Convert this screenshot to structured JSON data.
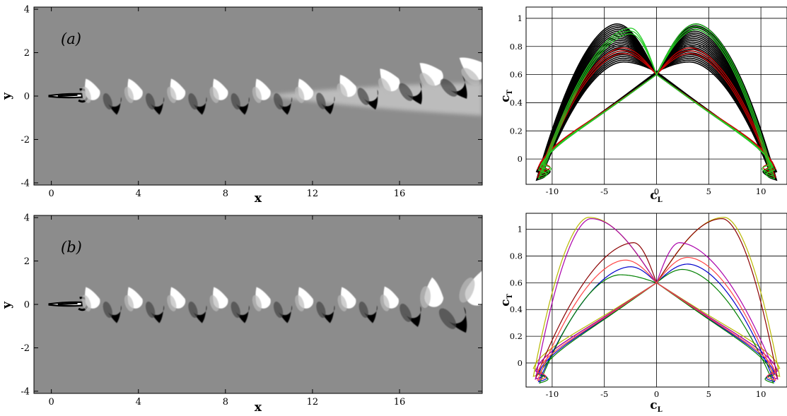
{
  "figure": {
    "panels": [
      {
        "label": "(a)",
        "flow_field": {
          "xlabel": "x",
          "ylabel": "y",
          "x_ticks": [
            "0",
            "4",
            "8",
            "12",
            "16"
          ],
          "y_ticks": [
            "4",
            "2",
            "0",
            "-2",
            "-4"
          ],
          "x_range": [
            -0.8,
            19.8
          ],
          "y_range": [
            -4.1,
            4.1
          ],
          "background_color": "#8c8c8c",
          "wake_transition_x": 12.5
        },
        "phase_plot": {
          "xlabel": "c_L",
          "ylabel": "c_T",
          "x_ticks": [
            "-10",
            "-5",
            "0",
            "5",
            "10"
          ],
          "y_ticks": [
            "0",
            "0.2",
            "0.4",
            "0.6",
            "0.8",
            "1"
          ],
          "x_range": [
            -12.5,
            12.5
          ],
          "y_range": [
            -0.18,
            1.08
          ],
          "series_colors": [
            "#000000",
            "#cc0000",
            "#22cc22"
          ]
        }
      },
      {
        "label": "(b)",
        "flow_field": {
          "xlabel": "x",
          "ylabel": "y",
          "x_ticks": [
            "0",
            "4",
            "8",
            "12",
            "16"
          ],
          "y_ticks": [
            "4",
            "2",
            "0",
            "-2",
            "-4"
          ],
          "x_range": [
            -0.8,
            19.8
          ],
          "y_range": [
            -4.1,
            4.1
          ],
          "background_color": "#8c8c8c",
          "wake_transition_x": 15.5
        },
        "phase_plot": {
          "xlabel": "c_L",
          "ylabel": "c_T",
          "x_ticks": [
            "-10",
            "-5",
            "0",
            "5",
            "10"
          ],
          "y_ticks": [
            "0",
            "0.2",
            "0.4",
            "0.6",
            "0.8",
            "1"
          ],
          "x_range": [
            -12.5,
            12.5
          ],
          "y_range": [
            -0.18,
            1.12
          ],
          "series_colors": [
            "#b8b800",
            "#8b0000",
            "#aa00aa",
            "#0000cc",
            "#008000",
            "#ff4444"
          ]
        }
      }
    ]
  },
  "chart_data": [
    {
      "type": "heatmap",
      "title": "(a)",
      "xlabel": "x",
      "ylabel": "y",
      "xlim": [
        -0.8,
        19.8
      ],
      "ylim": [
        -4.1,
        4.1
      ],
      "x_ticks": [
        0,
        4,
        8,
        12,
        16
      ],
      "y_ticks": [
        -4,
        -2,
        0,
        2,
        4
      ],
      "grid": false
    },
    {
      "type": "line",
      "xlabel": "c_L",
      "ylabel": "c_T",
      "xlim": [
        -12.5,
        12.5
      ],
      "ylim": [
        -0.18,
        1.08
      ],
      "x_ticks": [
        -10,
        -5,
        0,
        5,
        10
      ],
      "y_ticks": [
        0,
        0.2,
        0.4,
        0.6,
        0.8,
        1
      ],
      "grid": true,
      "series": [
        {
          "color": "#000000",
          "peak_cL": [
            -4,
            4
          ],
          "peak_cT": [
            0.96,
            0.96
          ],
          "min_cT": -0.15,
          "cL_extent": [
            -11.5,
            11.5
          ]
        },
        {
          "color": "#cc0000",
          "peak_cL": [
            -3.2,
            3.2
          ],
          "peak_cT": [
            0.79,
            0.79
          ],
          "min_cT": -0.13,
          "cL_extent": [
            -11.4,
            11.4
          ]
        },
        {
          "color": "#22cc22",
          "peak_cL": [
            -2.5,
            3.8
          ],
          "peak_cT": [
            0.93,
            0.96
          ],
          "min_cT": -0.14,
          "cL_extent": [
            -11.3,
            11.3
          ]
        }
      ]
    },
    {
      "type": "heatmap",
      "title": "(b)",
      "xlabel": "x",
      "ylabel": "y",
      "xlim": [
        -0.8,
        19.8
      ],
      "ylim": [
        -4.1,
        4.1
      ],
      "x_ticks": [
        0,
        4,
        8,
        12,
        16
      ],
      "y_ticks": [
        -4,
        -2,
        0,
        2,
        4
      ],
      "grid": false
    },
    {
      "type": "line",
      "xlabel": "c_L",
      "ylabel": "c_T",
      "xlim": [
        -12.5,
        12.5
      ],
      "ylim": [
        -0.18,
        1.12
      ],
      "x_ticks": [
        -10,
        -5,
        0,
        5,
        10
      ],
      "y_ticks": [
        0,
        0.2,
        0.4,
        0.6,
        0.8,
        1
      ],
      "grid": true,
      "series": [
        {
          "color": "#b8b800",
          "peak_cL": [
            -6.5,
            6.5
          ],
          "peak_cT": [
            1.09,
            1.09
          ],
          "min_cT": -0.1,
          "cL_extent": [
            -11.8,
            11.8
          ]
        },
        {
          "color": "#8b0000",
          "peak_cL": [
            -2.2,
            6.3
          ],
          "peak_cT": [
            0.9,
            1.08
          ],
          "min_cT": -0.12,
          "cL_extent": [
            -11.6,
            11.6
          ]
        },
        {
          "color": "#aa00aa",
          "peak_cL": [
            -6.3,
            2.2
          ],
          "peak_cT": [
            1.08,
            0.9
          ],
          "min_cT": -0.12,
          "cL_extent": [
            -11.6,
            11.6
          ]
        },
        {
          "color": "#0000cc",
          "peak_cL": [
            -2.5,
            3.0
          ],
          "peak_cT": [
            0.72,
            0.74
          ],
          "min_cT": -0.14,
          "cL_extent": [
            -11.3,
            11.3
          ]
        },
        {
          "color": "#008000",
          "peak_cL": [
            -3.5,
            2.5
          ],
          "peak_cT": [
            0.66,
            0.7
          ],
          "min_cT": -0.15,
          "cL_extent": [
            -11.2,
            11.2
          ]
        },
        {
          "color": "#ff4444",
          "peak_cL": [
            -3.0,
            3.0
          ],
          "peak_cT": [
            0.77,
            0.79
          ],
          "min_cT": -0.13,
          "cL_extent": [
            -11.4,
            11.4
          ]
        }
      ]
    }
  ]
}
